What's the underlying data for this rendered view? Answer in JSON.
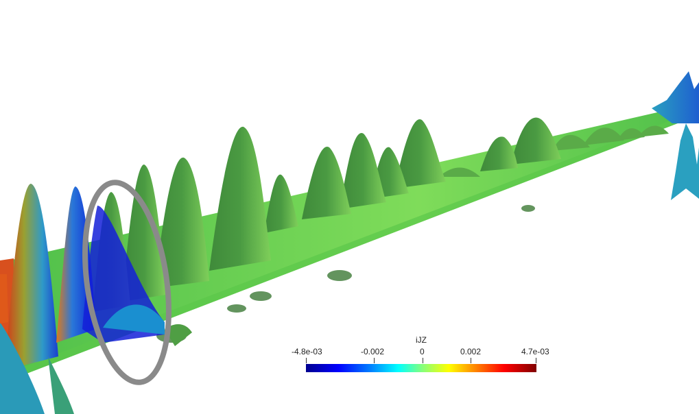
{
  "colorbar": {
    "title": "iJZ",
    "ticks": [
      "-4.8e-03",
      "-0.002",
      "0",
      "0.002",
      "4.7e-03"
    ],
    "min": -0.0048,
    "max": 0.0047,
    "colormap": [
      "#00008f",
      "#0000ff",
      "#0080ff",
      "#00ffff",
      "#80ff80",
      "#ffff00",
      "#ff8000",
      "#ff0000",
      "#800000"
    ]
  },
  "colors": {
    "background": "#ffffff",
    "surface_green": "#5fb84a",
    "ring": "#8a8a8a"
  }
}
